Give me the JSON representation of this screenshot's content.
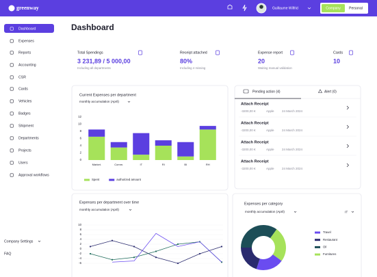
{
  "header": {
    "logo": "greenway",
    "user": "Guillaume Wilfrid",
    "toggle": [
      "Company",
      "Personal"
    ]
  },
  "sidebar": {
    "items": [
      "Dashboard",
      "Expenses",
      "Reports",
      "Accounting",
      "CSR",
      "Cards",
      "Vehicles",
      "Badges",
      "Shipment",
      "Departments",
      "Projects",
      "Users",
      "Approval workflows"
    ],
    "footer": [
      "Company Settings",
      "FAQ"
    ]
  },
  "page_title": "Dashboard",
  "stats": [
    {
      "label": "Total Spendings",
      "value": "3 231,89 / 5 000,00",
      "note": "Including all departments"
    },
    {
      "label": "Receipt attached",
      "value": "80%",
      "note": "Including 4 missing"
    },
    {
      "label": "Expense report",
      "value": "20",
      "note": "Waiting manual validation"
    },
    {
      "label": "Cards",
      "value": "10"
    }
  ],
  "pending": {
    "tabs": [
      "Pending action (4)",
      "Alert (0)"
    ],
    "items": [
      {
        "title": "Attach Receipt",
        "amount": "-3200,00 €",
        "merchant": "Apple",
        "date": "24 March 2024"
      },
      {
        "title": "Attach Receipt",
        "amount": "-3200,00 €",
        "merchant": "Apple",
        "date": "24 March 2024"
      },
      {
        "title": "Attach Receipt",
        "amount": "-3200,00 €",
        "merchant": "Apple",
        "date": "24 March 2024"
      },
      {
        "title": "Attach Receipt",
        "amount": "-3200,00 €",
        "merchant": "Apple",
        "date": "24 March 2024"
      }
    ]
  },
  "chart_data": [
    {
      "type": "bar",
      "stacked": true,
      "title": "Current Expenses per department",
      "subtitle": "monthly accumulation (April)",
      "categories": [
        "Market.",
        "Comm.",
        "IT",
        "RI",
        "BI",
        "RH"
      ],
      "series": [
        {
          "name": "Spent",
          "color": "#a6e25a",
          "values": [
            6.5,
            3.5,
            1.5,
            4,
            1,
            8.5
          ]
        },
        {
          "name": "authorized amount",
          "color": "#5b3fe0",
          "values": [
            2,
            1.5,
            6,
            1.5,
            4,
            1
          ]
        }
      ],
      "ylim": [
        0,
        12
      ],
      "yticks": [
        0,
        2,
        4,
        6,
        8,
        10,
        12
      ],
      "grid": false
    },
    {
      "type": "line",
      "title": "Expenses per department over time",
      "subtitle": "monthly accumulation (April)",
      "categories": [
        null,
        null,
        null,
        null,
        null,
        null,
        null
      ],
      "series": [
        {
          "color": "#2a2b6e",
          "markers": true,
          "values": [
            1,
            3.5,
            1,
            -3.5,
            -6,
            -2,
            1
          ]
        },
        {
          "color": "#1d6b5a",
          "markers": true,
          "values": [
            -2,
            -4.5,
            -3.5,
            -1,
            2,
            3,
            -5.5
          ]
        },
        {
          "color": "#6a4cf0",
          "markers": false,
          "values": [
            null,
            -5.5,
            -5,
            6.5,
            1,
            3,
            -5.5
          ]
        }
      ],
      "ylim": [
        -6,
        10
      ],
      "yticks": [
        -6,
        -4,
        -2,
        0,
        2,
        4,
        6,
        8,
        10
      ],
      "grid": true
    },
    {
      "type": "pie",
      "donut": true,
      "title": "Expenses per category",
      "subtitle": "monthly accumulation (April)",
      "filter": "IT",
      "categories": [
        "Travel",
        "Restaurant",
        "Oil",
        "Furnitures"
      ],
      "values": [
        20,
        20,
        35,
        25
      ],
      "colors": [
        "#6a4cf0",
        "#2a2b6e",
        "#1d4e57",
        "#a6e25a"
      ]
    }
  ]
}
